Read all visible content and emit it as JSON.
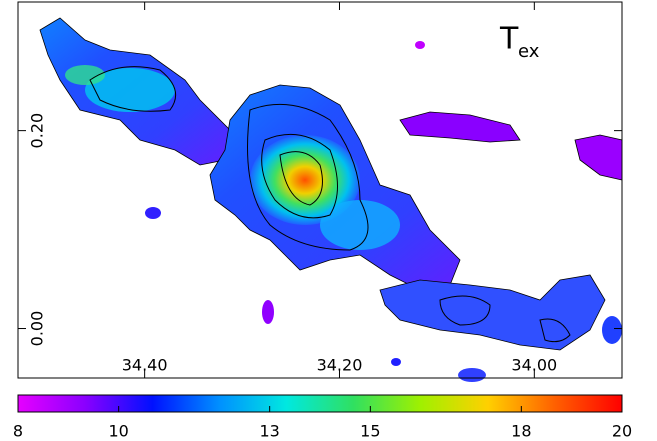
{
  "chart_data": {
    "type": "map",
    "title": "T",
    "title_subscript": "ex",
    "xlim": [
      34.53,
      33.91
    ],
    "xticks": [
      {
        "value": 34.4,
        "label": "34.40"
      },
      {
        "value": 34.2,
        "label": "34.20"
      },
      {
        "value": 34.0,
        "label": "34.00"
      }
    ],
    "ylim": [
      -0.05,
      0.33
    ],
    "yticks": [
      {
        "value": 0.2,
        "label": "0.20"
      },
      {
        "value": 0,
        "label": "0.00"
      }
    ],
    "colorbar": {
      "lim": [
        8,
        20
      ],
      "ticks": [
        8,
        10,
        13,
        15,
        18,
        20
      ],
      "colors": [
        "#e600ff",
        "#8a00ff",
        "#0010ff",
        "#0090ff",
        "#00e8e0",
        "#30e060",
        "#a0f000",
        "#ffd000",
        "#ff6000",
        "#ff0000"
      ]
    }
  }
}
